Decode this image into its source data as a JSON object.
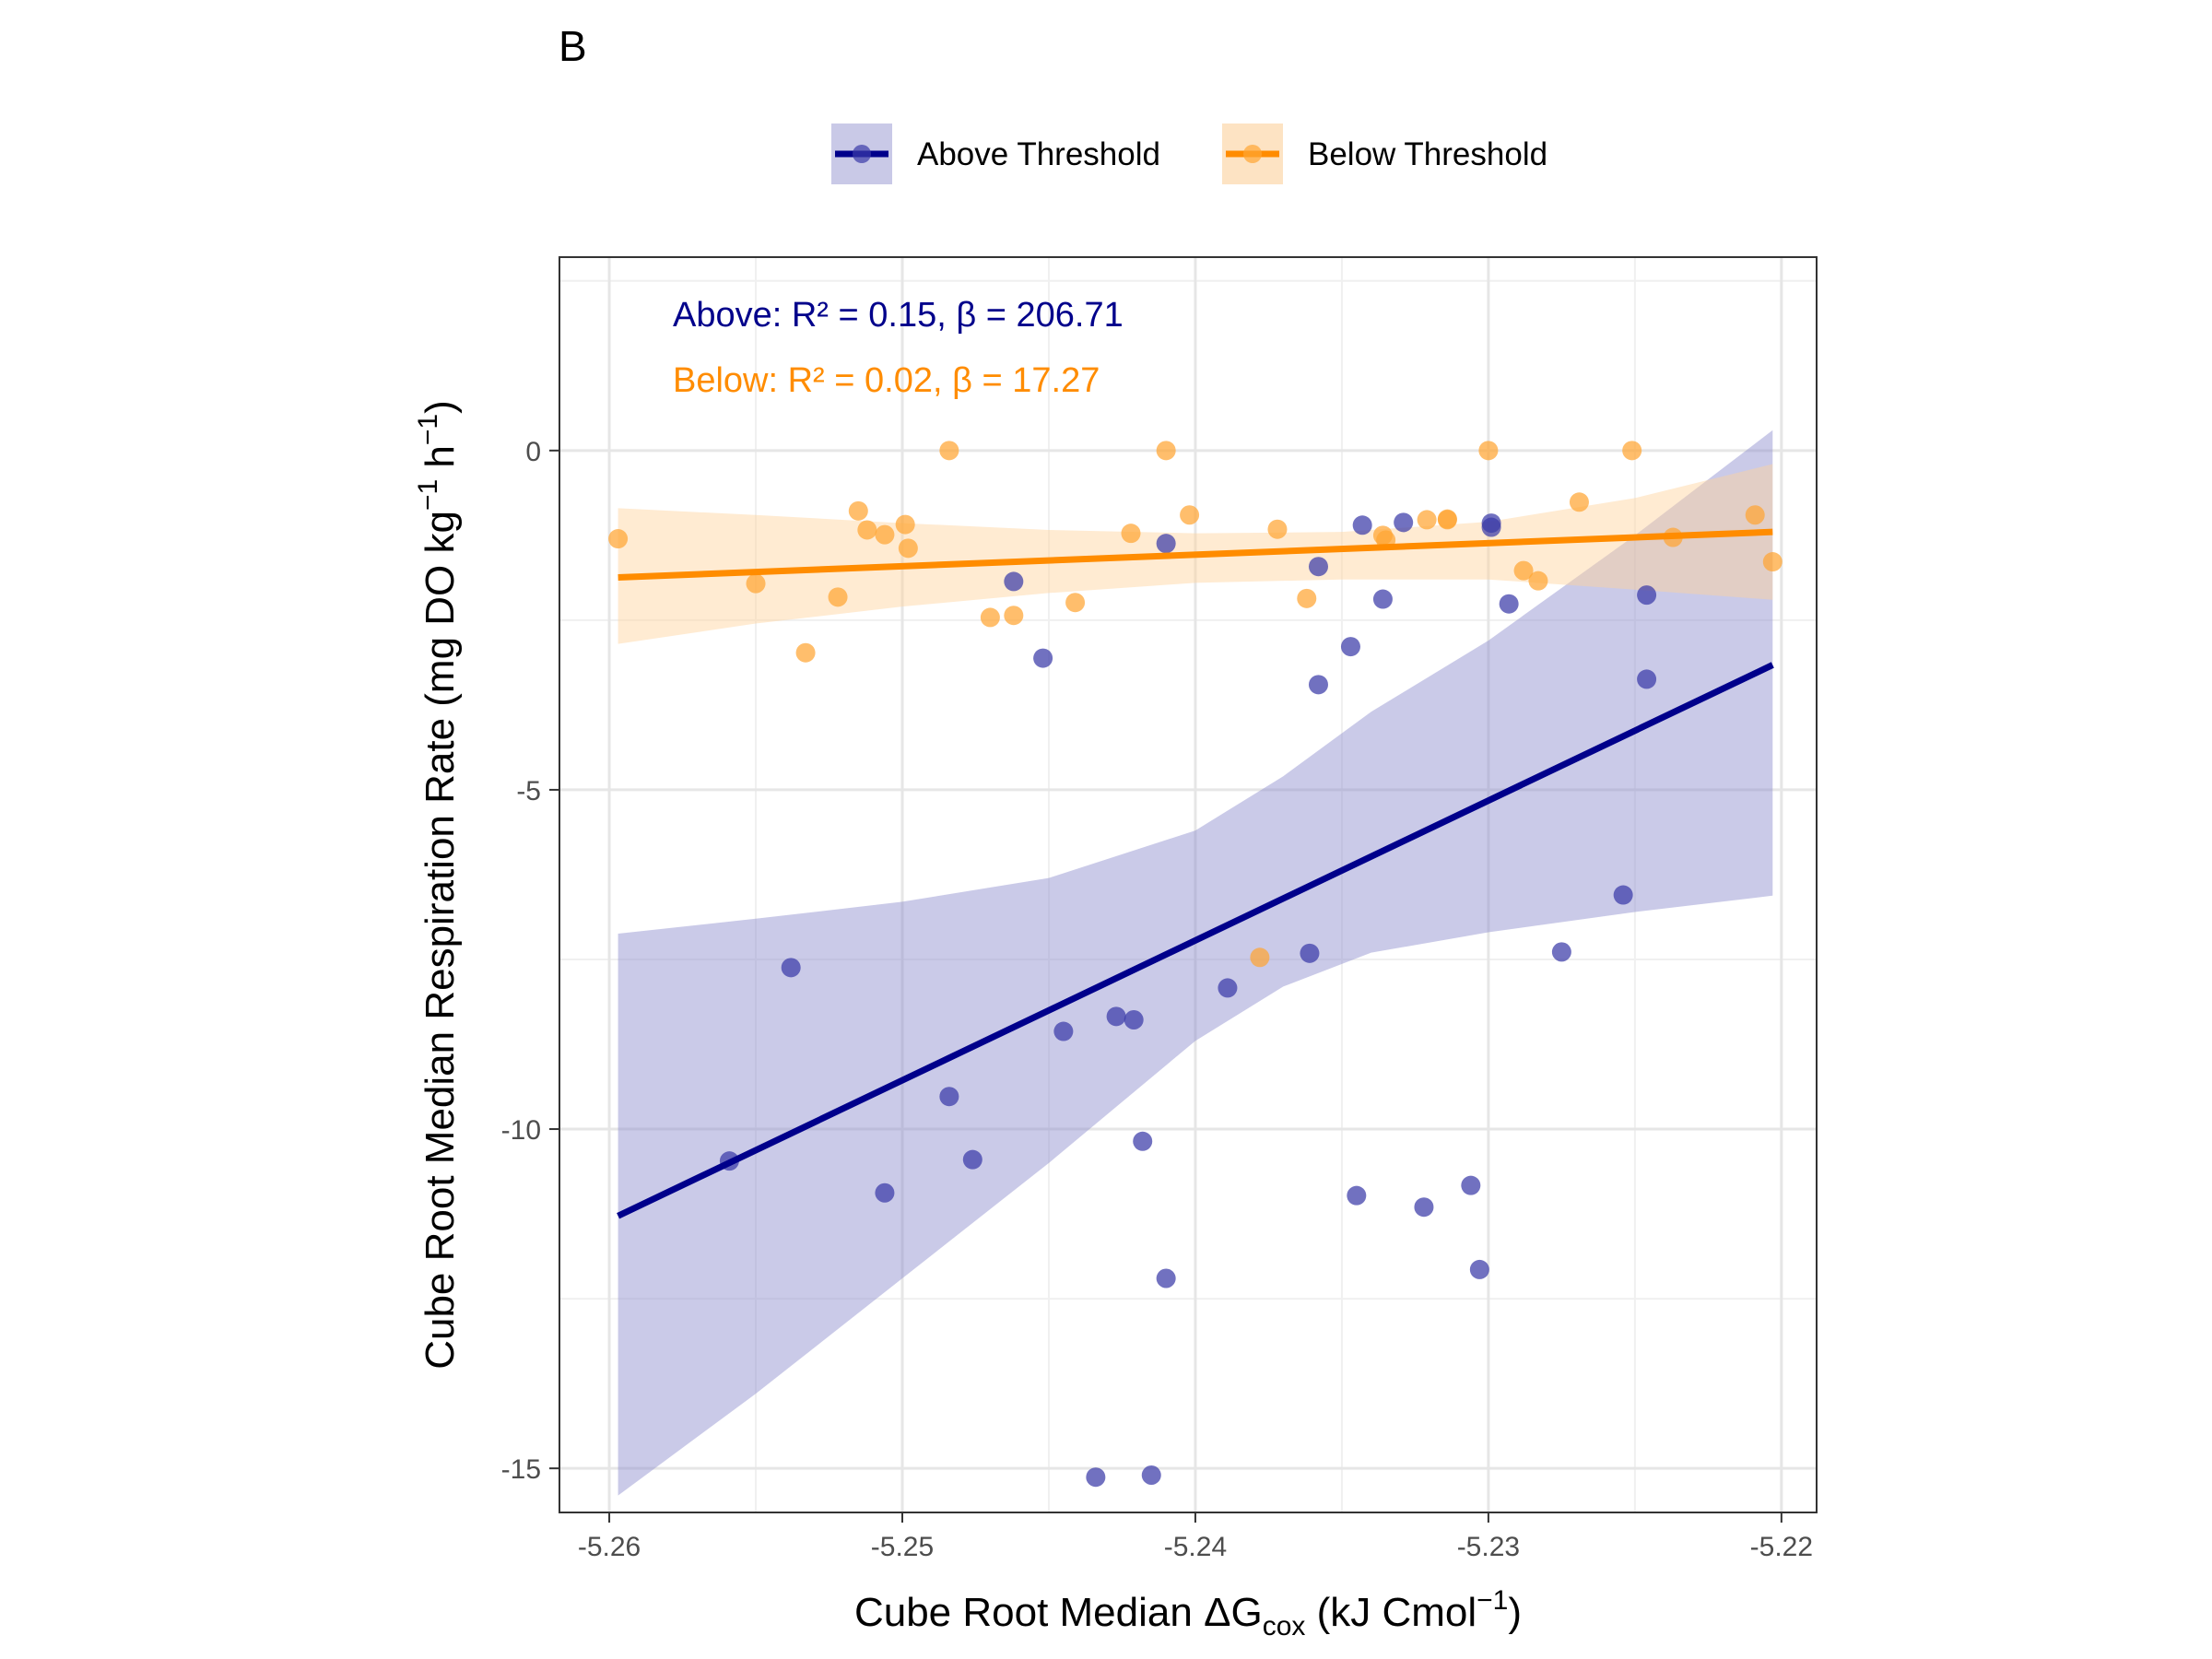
{
  "chart_data": {
    "type": "scatter",
    "panel_label": "B",
    "xlabel": {
      "main": "Cube Root Median ΔG",
      "sub": "cox",
      "unit_open": " (kJ Cmol",
      "unit_sup": "−1",
      "unit_close": ")"
    },
    "ylabel": {
      "main": "Cube Root Median Respiration Rate  (mg DO kg",
      "sup1": "−1",
      "mid": " h",
      "sup2": "−1",
      "close": ")"
    },
    "xlim": [
      -5.2617,
      -5.2188
    ],
    "ylim": [
      -15.65,
      2.85
    ],
    "xticks": [
      -5.26,
      -5.25,
      -5.24,
      -5.23,
      -5.22
    ],
    "xtick_labels": [
      "-5.26",
      "-5.25",
      "-5.24",
      "-5.23",
      "-5.22"
    ],
    "yticks": [
      0,
      -5,
      -10,
      -15
    ],
    "ytick_labels": [
      "0",
      "-5",
      "-10",
      "-15"
    ],
    "grid": true,
    "legend_position": "top",
    "legend": [
      {
        "label": "Above Threshold",
        "color": "#00008B",
        "fill": "#c9c9e7"
      },
      {
        "label": "Below Threshold",
        "color": "#FF8C00",
        "fill": "#fde3c3"
      }
    ],
    "annotations": [
      {
        "text": "Above: R² = 0.15, β = 206.71",
        "color": "#00008B"
      },
      {
        "text": "Below: R² = 0.02, β = 17.27",
        "color": "#FF8C00"
      }
    ],
    "series": [
      {
        "name": "Above Threshold",
        "color": "#00008B",
        "point_color": "#3a3aa8",
        "band_color": "#8a8acb",
        "points": [
          [
            -5.2559,
            -10.47
          ],
          [
            -5.2538,
            -7.62
          ],
          [
            -5.2506,
            -10.94
          ],
          [
            -5.2484,
            -9.52
          ],
          [
            -5.2476,
            -10.45
          ],
          [
            -5.2462,
            -1.93
          ],
          [
            -5.2452,
            -3.06
          ],
          [
            -5.2445,
            -8.56
          ],
          [
            -5.2434,
            -15.13
          ],
          [
            -5.2427,
            -8.34
          ],
          [
            -5.2421,
            -8.39
          ],
          [
            -5.2418,
            -10.18
          ],
          [
            -5.2415,
            -15.1
          ],
          [
            -5.241,
            -1.37
          ],
          [
            -5.241,
            -12.2
          ],
          [
            -5.2389,
            -7.92
          ],
          [
            -5.2361,
            -7.41
          ],
          [
            -5.2358,
            -3.45
          ],
          [
            -5.2358,
            -1.71
          ],
          [
            -5.2347,
            -2.89
          ],
          [
            -5.2345,
            -10.98
          ],
          [
            -5.2343,
            -1.1
          ],
          [
            -5.2336,
            -2.19
          ],
          [
            -5.2329,
            -1.06
          ],
          [
            -5.2322,
            -11.15
          ],
          [
            -5.2306,
            -10.83
          ],
          [
            -5.2303,
            -12.07
          ],
          [
            -5.2299,
            -1.07
          ],
          [
            -5.2299,
            -1.13
          ],
          [
            -5.2293,
            -2.26
          ],
          [
            -5.2275,
            -7.39
          ],
          [
            -5.2254,
            -6.55
          ],
          [
            -5.2246,
            -2.13
          ],
          [
            -5.2246,
            -3.37
          ]
        ],
        "fit": [
          [
            -5.2597,
            -11.28
          ],
          [
            -5.2203,
            -3.16
          ]
        ],
        "band_upper": [
          [
            -5.2597,
            -7.12
          ],
          [
            -5.255,
            -6.9
          ],
          [
            -5.25,
            -6.65
          ],
          [
            -5.245,
            -6.3
          ],
          [
            -5.24,
            -5.6
          ],
          [
            -5.237,
            -4.8
          ],
          [
            -5.234,
            -3.85
          ],
          [
            -5.23,
            -2.8
          ],
          [
            -5.225,
            -1.25
          ],
          [
            -5.2203,
            0.3
          ]
        ],
        "band_lower": [
          [
            -5.2597,
            -15.4
          ],
          [
            -5.255,
            -13.9
          ],
          [
            -5.25,
            -12.2
          ],
          [
            -5.245,
            -10.5
          ],
          [
            -5.24,
            -8.7
          ],
          [
            -5.237,
            -7.9
          ],
          [
            -5.234,
            -7.4
          ],
          [
            -5.23,
            -7.1
          ],
          [
            -5.225,
            -6.8
          ],
          [
            -5.2203,
            -6.56
          ]
        ]
      },
      {
        "name": "Below Threshold",
        "color": "#FF8C00",
        "point_color": "#FFA533",
        "band_color": "#ffd29b",
        "points": [
          [
            -5.2597,
            -1.3
          ],
          [
            -5.255,
            -1.96
          ],
          [
            -5.2533,
            -2.98
          ],
          [
            -5.2522,
            -2.16
          ],
          [
            -5.2515,
            -0.89
          ],
          [
            -5.2512,
            -1.17
          ],
          [
            -5.2506,
            -1.24
          ],
          [
            -5.2499,
            -1.09
          ],
          [
            -5.2498,
            -1.44
          ],
          [
            -5.2484,
            0.0
          ],
          [
            -5.247,
            -2.46
          ],
          [
            -5.2462,
            -2.43
          ],
          [
            -5.2441,
            -2.24
          ],
          [
            -5.2422,
            -1.22
          ],
          [
            -5.241,
            0.0
          ],
          [
            -5.2402,
            -0.95
          ],
          [
            -5.2378,
            -7.47
          ],
          [
            -5.2372,
            -1.16
          ],
          [
            -5.2362,
            -2.18
          ],
          [
            -5.2336,
            -1.25
          ],
          [
            -5.2335,
            -1.32
          ],
          [
            -5.2321,
            -1.02
          ],
          [
            -5.2314,
            -1.01
          ],
          [
            -5.2314,
            -1.02
          ],
          [
            -5.23,
            0.0
          ],
          [
            -5.2288,
            -1.77
          ],
          [
            -5.2283,
            -1.92
          ],
          [
            -5.2269,
            -0.76
          ],
          [
            -5.2251,
            0.0
          ],
          [
            -5.2237,
            -1.28
          ],
          [
            -5.2209,
            -0.95
          ],
          [
            -5.2203,
            -1.64
          ]
        ],
        "fit": [
          [
            -5.2597,
            -1.87
          ],
          [
            -5.2203,
            -1.2
          ]
        ],
        "band_upper": [
          [
            -5.2597,
            -0.85
          ],
          [
            -5.255,
            -0.95
          ],
          [
            -5.25,
            -1.07
          ],
          [
            -5.245,
            -1.17
          ],
          [
            -5.24,
            -1.22
          ],
          [
            -5.235,
            -1.2
          ],
          [
            -5.23,
            -1.05
          ],
          [
            -5.225,
            -0.7
          ],
          [
            -5.2203,
            -0.2
          ]
        ],
        "band_lower": [
          [
            -5.2597,
            -2.85
          ],
          [
            -5.255,
            -2.55
          ],
          [
            -5.25,
            -2.3
          ],
          [
            -5.245,
            -2.1
          ],
          [
            -5.24,
            -1.95
          ],
          [
            -5.235,
            -1.9
          ],
          [
            -5.23,
            -1.9
          ],
          [
            -5.225,
            -2.05
          ],
          [
            -5.2203,
            -2.2
          ]
        ]
      }
    ]
  }
}
